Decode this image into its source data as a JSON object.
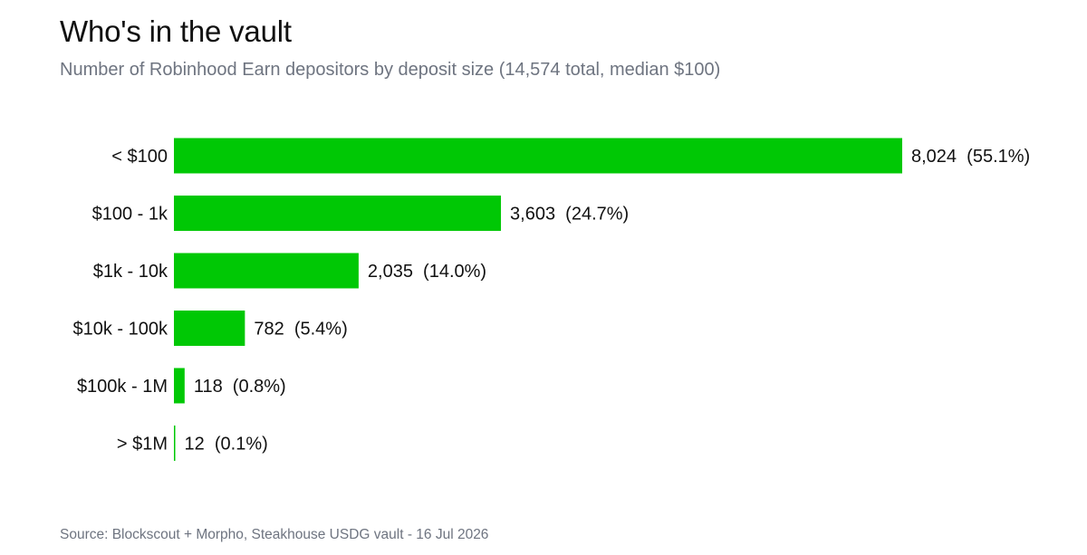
{
  "colors": {
    "bar": "#00c805",
    "title": "#111111",
    "muted": "#6e7480",
    "background": "#ffffff"
  },
  "chart_data": {
    "type": "bar",
    "orientation": "horizontal",
    "title": "Who's in the vault",
    "subtitle": "Number of Robinhood Earn depositors by deposit size (14,574 total, median $100)",
    "source": "Source: Blockscout + Morpho, Steakhouse USDG vault - 16 Jul 2026",
    "categories": [
      "< $100",
      "$100 - 1k",
      "$1k - 10k",
      "$10k - 100k",
      "$100k - 1M",
      "> $1M"
    ],
    "values": [
      8024,
      3603,
      2035,
      782,
      118,
      12
    ],
    "data_labels": [
      "8,024  (55.1%)",
      "3,603  (24.7%)",
      "2,035  (14.0%)",
      "782  (5.4%)",
      "118  (0.8%)",
      "12  (0.1%)"
    ],
    "xlim": [
      0,
      8024
    ],
    "grid": false,
    "legend": "none"
  }
}
